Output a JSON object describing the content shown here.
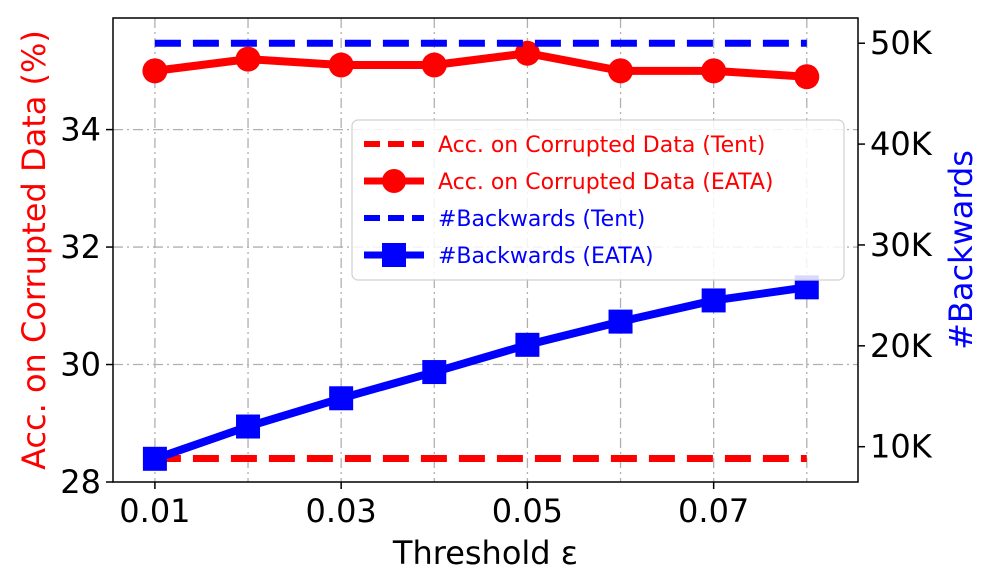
{
  "chart_data": {
    "type": "line",
    "xlabel": "Threshold ε",
    "ylabel": "Acc. on Corrupted Data (%)",
    "y2label": "#Backwards",
    "x": [
      0.01,
      0.02,
      0.03,
      0.04,
      0.05,
      0.06,
      0.07,
      0.08
    ],
    "xticks": [
      0.01,
      0.03,
      0.05,
      0.07
    ],
    "xticklabels": [
      "0.01",
      "0.03",
      "0.05",
      "0.07"
    ],
    "xlim": [
      0.0055,
      0.0855
    ],
    "ylim": [
      28.0,
      35.9
    ],
    "yticks": [
      28,
      30,
      32,
      34
    ],
    "yticklabels": [
      "28",
      "30",
      "32",
      "34"
    ],
    "y2lim": [
      6500,
      52500
    ],
    "y2ticks": [
      10000,
      20000,
      30000,
      40000,
      50000
    ],
    "y2ticklabels": [
      "10K",
      "20K",
      "30K",
      "40K",
      "50K"
    ],
    "grid": true,
    "legend_position": "upper right",
    "colors": {
      "accuracy": "#ff0000",
      "backwards": "#0000ff"
    },
    "series": [
      {
        "name": "Acc. on Corrupted Data (Tent)",
        "axis": "left",
        "color": "#ff0000",
        "style": "dashed",
        "marker": "none",
        "values": [
          28.4,
          28.4,
          28.4,
          28.4,
          28.4,
          28.4,
          28.4,
          28.4
        ]
      },
      {
        "name": "Acc. on Corrupted Data (EATA)",
        "axis": "left",
        "color": "#ff0000",
        "style": "solid",
        "marker": "circle",
        "values": [
          35.0,
          35.2,
          35.1,
          35.1,
          35.3,
          35.0,
          35.0,
          34.9
        ]
      },
      {
        "name": "#Backwards (Tent)",
        "axis": "right",
        "color": "#0000ff",
        "style": "dashed",
        "marker": "none",
        "values": [
          50000,
          50000,
          50000,
          50000,
          50000,
          50000,
          50000,
          50000
        ]
      },
      {
        "name": "#Backwards (EATA)",
        "axis": "right",
        "color": "#0000ff",
        "style": "solid",
        "marker": "square",
        "values": [
          8800,
          12000,
          14800,
          17400,
          20100,
          22400,
          24500,
          25800
        ]
      }
    ]
  }
}
